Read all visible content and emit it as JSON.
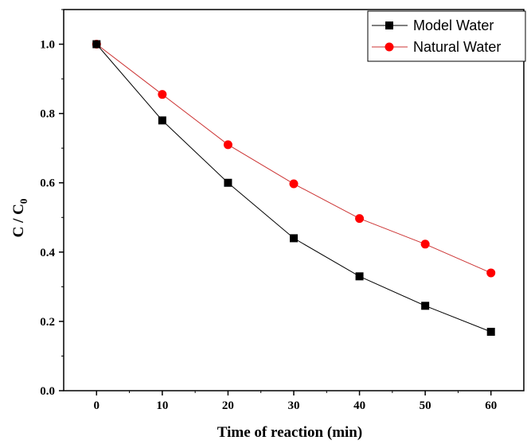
{
  "chart_data": {
    "type": "line",
    "xlabel": "Time of reaction (min)",
    "ylabel": {
      "main": "C / C",
      "sub": "0"
    },
    "xlim": [
      -5,
      65
    ],
    "ylim": [
      0,
      1.1
    ],
    "xticks": [
      0,
      10,
      20,
      30,
      40,
      50,
      60
    ],
    "yticks": [
      0.0,
      0.2,
      0.4,
      0.6,
      0.8,
      1.0
    ],
    "xtick_labels": [
      "0",
      "10",
      "20",
      "30",
      "40",
      "50",
      "60"
    ],
    "ytick_labels": [
      "0.0",
      "0.2",
      "0.4",
      "0.6",
      "0.8",
      "1.0"
    ],
    "grid": false,
    "legend_position": "top-right",
    "x": [
      0,
      10,
      20,
      30,
      40,
      50,
      60
    ],
    "series": [
      {
        "name": "Model Water",
        "values": [
          1.0,
          0.78,
          0.6,
          0.44,
          0.33,
          0.245,
          0.17
        ],
        "color": "#000000",
        "marker": "square"
      },
      {
        "name": "Natural Water",
        "values": [
          1.0,
          0.855,
          0.71,
          0.597,
          0.497,
          0.423,
          0.34
        ],
        "color": "#ff0000",
        "line_color": "#cc3333",
        "marker": "circle"
      }
    ]
  }
}
